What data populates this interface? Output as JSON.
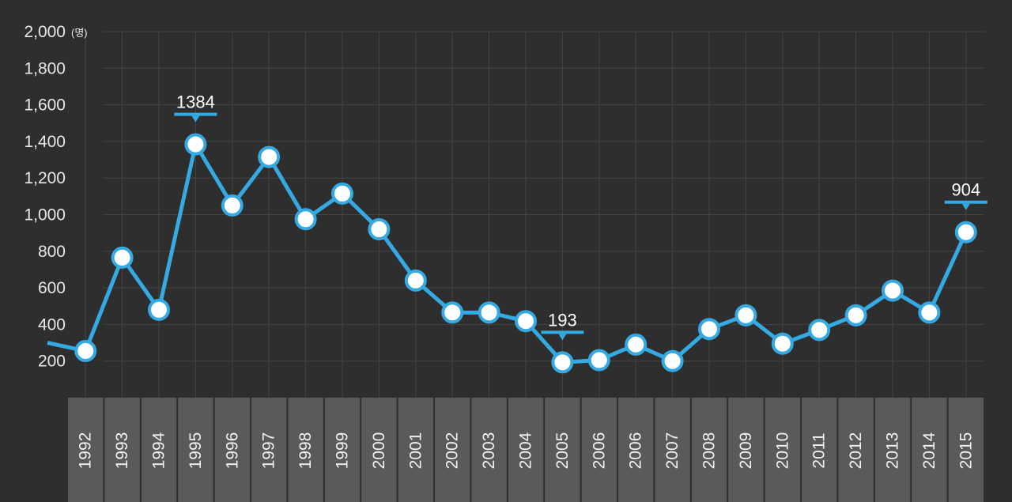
{
  "chart_data": {
    "type": "line",
    "unit": "(명)",
    "yticks": [
      "2,000",
      "1,800",
      "1,600",
      "1,400",
      "1,200",
      "1,000",
      "800",
      "600",
      "400",
      "200"
    ],
    "ylim": [
      0,
      2000
    ],
    "grid": true,
    "categories": [
      "1992",
      "1993",
      "1994",
      "1995",
      "1996",
      "1997",
      "1998",
      "1999",
      "2000",
      "2001",
      "2002",
      "2003",
      "2004",
      "2005",
      "2006",
      "2006",
      "2007",
      "2008",
      "2009",
      "2010",
      "2011",
      "2012",
      "2013",
      "2014",
      "2015"
    ],
    "series": [
      {
        "values": [
          255,
          765,
          480,
          1384,
          1050,
          1315,
          975,
          1115,
          920,
          640,
          465,
          465,
          418,
          193,
          205,
          290,
          200,
          375,
          450,
          295,
          370,
          450,
          585,
          465,
          904
        ]
      }
    ],
    "lead_in_value": 300,
    "annotations": [
      {
        "category_index": 3,
        "label": "1384"
      },
      {
        "category_index": 13,
        "label": "193"
      },
      {
        "category_index": 24,
        "label": "904"
      }
    ],
    "colors": {
      "line": "#35a9e1",
      "marker_fill": "#ffffff",
      "background": "#2e2e2e",
      "axis_band": "#5a5a5a"
    }
  }
}
